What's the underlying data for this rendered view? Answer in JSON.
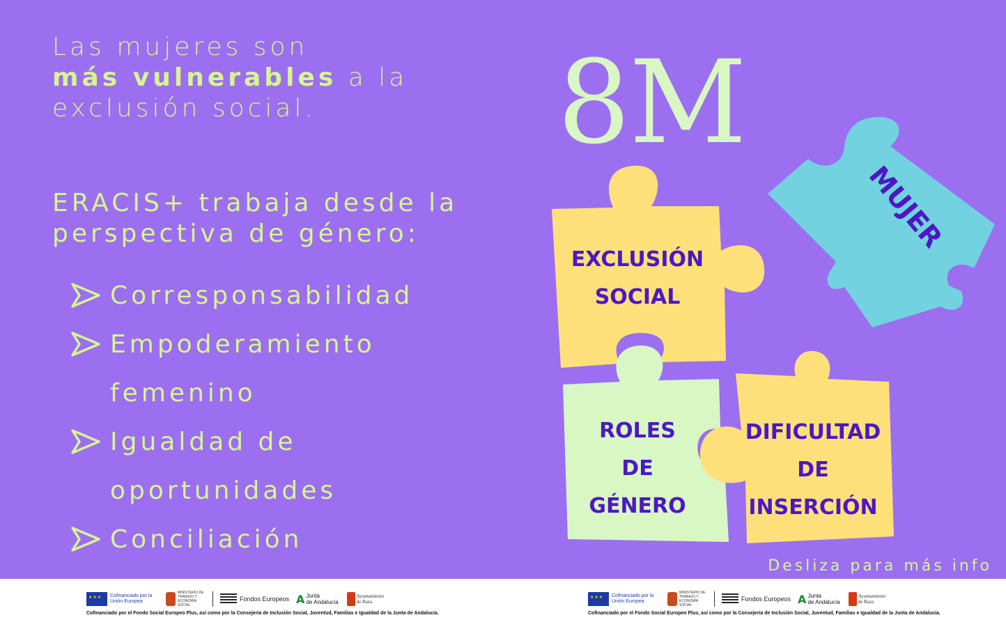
{
  "intro": {
    "line1": "Las mujeres son",
    "bold": "más vulnerables",
    "line2_rest": " a la",
    "line3": "exclusión social."
  },
  "eracis": {
    "line1": "ERACIS+ trabaja desde la",
    "line2": "perspectiva de género:"
  },
  "bullets": [
    {
      "l1": "Corresponsabilidad",
      "l2": ""
    },
    {
      "l1": "Empoderamiento",
      "l2": "femenino"
    },
    {
      "l1": "Igualdad de",
      "l2": "oportunidades"
    },
    {
      "l1": "Conciliación",
      "l2": ""
    }
  ],
  "title": "8M",
  "pieces": {
    "exclusion": {
      "l1": "EXCLUSIÓN",
      "l2": "SOCIAL"
    },
    "mujer": "MUJER",
    "roles": {
      "l1": "ROLES",
      "l2": "DE",
      "l3": "GÉNERO"
    },
    "dificultad": {
      "l1": "DIFICULTAD",
      "l2": "DE",
      "l3": "INSERCIÓN"
    }
  },
  "swipe": "Desliza para más info",
  "footer": {
    "eu": "Cofinanciado por la Unión Europea",
    "ministry": "MINISTERIO DE TRABAJO Y ECONOMÍA SOCIAL",
    "fondos": "Fondos Europeos",
    "junta_l1": "Junta",
    "junta_l2": "de Andalucía",
    "ayto": "Ayuntamiento de Baza",
    "cofinanciado": "Cofinanciado por el Fondo Social Europeo Plus, así como por la Consejería de Inclusión Social, Juventud, Familias e Igualdad de la Junta de Andalucía."
  },
  "colors": {
    "background": "#9b6ff0",
    "text_green": "#d8f58f",
    "piece_yellow": "#fde07a",
    "piece_cyan": "#72d2e0",
    "piece_mint": "#d8f7c4",
    "label_purple": "#4c18c4"
  }
}
